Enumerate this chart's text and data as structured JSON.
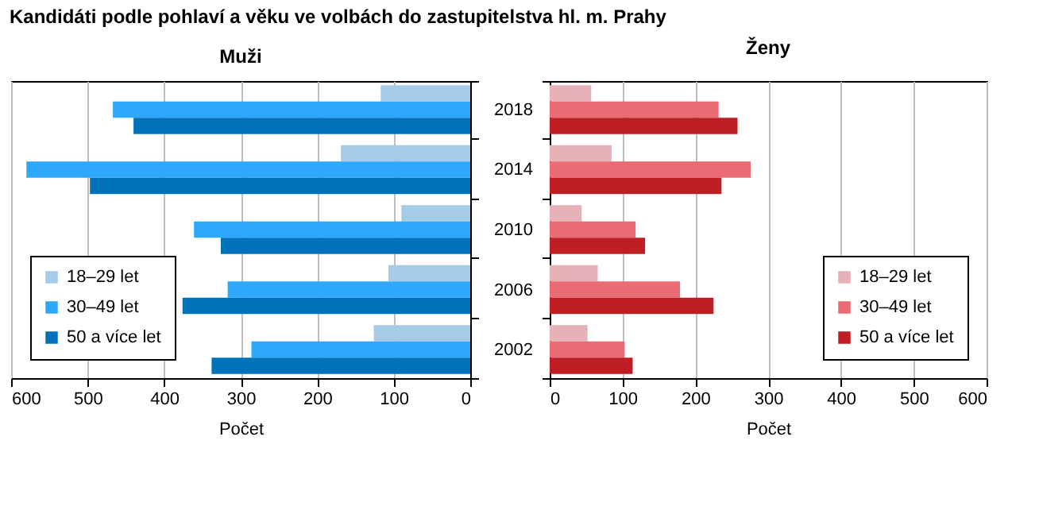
{
  "chart_data": [
    {
      "type": "bar",
      "orientation": "horizontal",
      "title": "Kandidáti podle pohlaví a věku ve volbách do zastupitelstva hl. m. Prahy",
      "subtitle": "Muži",
      "xlabel": "Počet",
      "categories": [
        "2018",
        "2014",
        "2010",
        "2006",
        "2002"
      ],
      "series": [
        {
          "name": "18–29 let",
          "color": "#a6cbe6",
          "values": [
            117,
            169,
            90,
            107,
            126
          ]
        },
        {
          "name": "30–49 let",
          "color": "#2ea8fb",
          "values": [
            467,
            580,
            361,
            317,
            286
          ]
        },
        {
          "name": "50 a více let",
          "color": "#0072bc",
          "values": [
            440,
            497,
            326,
            376,
            338
          ]
        }
      ],
      "xlim": [
        600,
        0
      ],
      "xticks": [
        600,
        500,
        400,
        300,
        200,
        100,
        0
      ],
      "grid": "x",
      "legend": "bottom left",
      "tick_labels": "x"
    },
    {
      "type": "bar",
      "orientation": "horizontal",
      "subtitle": "Ženy",
      "xlabel": "Počet",
      "categories": [
        "2018",
        "2014",
        "2010",
        "2006",
        "2002"
      ],
      "series": [
        {
          "name": "18–29 let",
          "color": "#e6b2b8",
          "values": [
            57,
            85,
            44,
            66,
            52
          ]
        },
        {
          "name": "30–49 let",
          "color": "#eb6b75",
          "values": [
            232,
            276,
            118,
            179,
            103
          ]
        },
        {
          "name": "50 a více let",
          "color": "#bf1e25",
          "values": [
            258,
            236,
            131,
            225,
            114
          ]
        }
      ],
      "xlim": [
        0,
        600
      ],
      "xticks": [
        0,
        100,
        200,
        300,
        400,
        500,
        600
      ],
      "grid": "x",
      "legend": "bottom right"
    }
  ]
}
